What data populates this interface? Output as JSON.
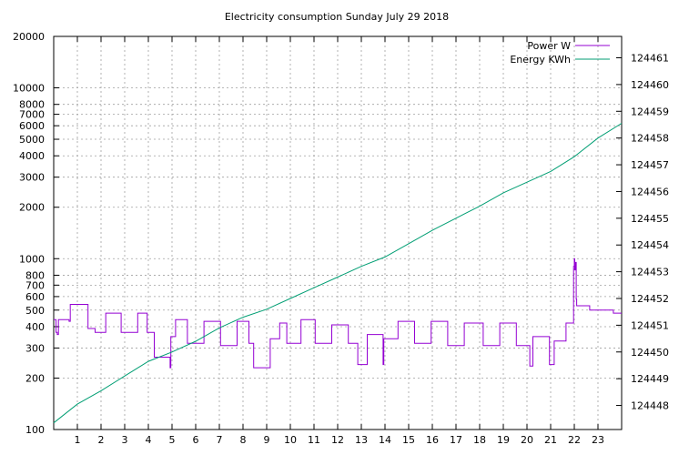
{
  "chart_data": {
    "type": "line",
    "title": "Electricity consumption Sunday July 29 2018",
    "xlim": [
      0,
      24
    ],
    "x_ticks": [
      "1",
      "2",
      "3",
      "4",
      "5",
      "6",
      "7",
      "8",
      "9",
      "10",
      "11",
      "12",
      "13",
      "14",
      "15",
      "16",
      "17",
      "18",
      "19",
      "20",
      "21",
      "22",
      "23"
    ],
    "y_left": {
      "scale": "log",
      "ylim": [
        100,
        20000
      ],
      "ticks": [
        "100",
        "200",
        "300",
        "400",
        "500",
        "600",
        "700",
        "800",
        "1000",
        "2000",
        "3000",
        "4000",
        "5000",
        "6000",
        "7000",
        "8000",
        "10000",
        "20000"
      ]
    },
    "y_right": {
      "scale": "linear",
      "ylim": [
        124447.1,
        124461.8
      ],
      "ticks": [
        "124448",
        "124449",
        "124450",
        "124451",
        "124452",
        "124453",
        "124454",
        "124455",
        "124456",
        "124457",
        "124458",
        "124459",
        "124460",
        "124461"
      ]
    },
    "legend_position": "top-right",
    "grid": true,
    "series": [
      {
        "name": "Power W",
        "axis": "left",
        "color": "#9400d3",
        "step": true,
        "points": [
          [
            0.0,
            440
          ],
          [
            0.1,
            370
          ],
          [
            0.15,
            360
          ],
          [
            0.2,
            440
          ],
          [
            0.6,
            440
          ],
          [
            0.65,
            430
          ],
          [
            0.7,
            540
          ],
          [
            1.4,
            540
          ],
          [
            1.45,
            390
          ],
          [
            1.7,
            390
          ],
          [
            1.75,
            370
          ],
          [
            2.15,
            370
          ],
          [
            2.2,
            480
          ],
          [
            2.8,
            480
          ],
          [
            2.85,
            370
          ],
          [
            3.5,
            370
          ],
          [
            3.55,
            480
          ],
          [
            3.9,
            480
          ],
          [
            3.95,
            370
          ],
          [
            4.2,
            370
          ],
          [
            4.25,
            265
          ],
          [
            4.9,
            265
          ],
          [
            4.92,
            230
          ],
          [
            4.95,
            350
          ],
          [
            5.1,
            350
          ],
          [
            5.15,
            440
          ],
          [
            5.6,
            440
          ],
          [
            5.65,
            320
          ],
          [
            6.3,
            320
          ],
          [
            6.35,
            430
          ],
          [
            7.0,
            430
          ],
          [
            7.05,
            310
          ],
          [
            7.7,
            310
          ],
          [
            7.75,
            430
          ],
          [
            8.2,
            430
          ],
          [
            8.25,
            320
          ],
          [
            8.4,
            320
          ],
          [
            8.45,
            230
          ],
          [
            9.1,
            230
          ],
          [
            9.15,
            340
          ],
          [
            9.5,
            340
          ],
          [
            9.55,
            420
          ],
          [
            9.8,
            420
          ],
          [
            9.85,
            320
          ],
          [
            10.4,
            320
          ],
          [
            10.45,
            440
          ],
          [
            11.0,
            440
          ],
          [
            11.05,
            320
          ],
          [
            11.7,
            320
          ],
          [
            11.75,
            410
          ],
          [
            12.4,
            410
          ],
          [
            12.45,
            320
          ],
          [
            12.8,
            320
          ],
          [
            12.85,
            240
          ],
          [
            13.2,
            240
          ],
          [
            13.25,
            360
          ],
          [
            13.9,
            360
          ],
          [
            13.92,
            240
          ],
          [
            13.95,
            340
          ],
          [
            14.5,
            340
          ],
          [
            14.55,
            430
          ],
          [
            15.2,
            430
          ],
          [
            15.25,
            320
          ],
          [
            15.9,
            320
          ],
          [
            15.95,
            430
          ],
          [
            16.6,
            430
          ],
          [
            16.65,
            310
          ],
          [
            17.3,
            310
          ],
          [
            17.35,
            420
          ],
          [
            18.1,
            420
          ],
          [
            18.15,
            310
          ],
          [
            18.8,
            310
          ],
          [
            18.85,
            420
          ],
          [
            19.5,
            420
          ],
          [
            19.55,
            310
          ],
          [
            20.1,
            310
          ],
          [
            20.12,
            235
          ],
          [
            20.2,
            235
          ],
          [
            20.25,
            350
          ],
          [
            20.9,
            350
          ],
          [
            20.95,
            240
          ],
          [
            21.1,
            240
          ],
          [
            21.15,
            330
          ],
          [
            21.6,
            330
          ],
          [
            21.65,
            420
          ],
          [
            21.95,
            420
          ],
          [
            21.97,
            900
          ],
          [
            22.0,
            1000
          ],
          [
            22.02,
            860
          ],
          [
            22.05,
            950
          ],
          [
            22.08,
            580
          ],
          [
            22.1,
            530
          ],
          [
            22.6,
            530
          ],
          [
            22.65,
            500
          ],
          [
            23.6,
            500
          ],
          [
            23.65,
            480
          ],
          [
            24.0,
            480
          ]
        ]
      },
      {
        "name": "Energy KWh",
        "axis": "right",
        "color": "#009e73",
        "step": false,
        "points": [
          [
            0,
            124447.35
          ],
          [
            1,
            124448.05
          ],
          [
            2,
            124448.55
          ],
          [
            3,
            124449.1
          ],
          [
            4,
            124449.65
          ],
          [
            5,
            124450.0
          ],
          [
            6,
            124450.4
          ],
          [
            7,
            124450.9
          ],
          [
            8,
            124451.3
          ],
          [
            9,
            124451.6
          ],
          [
            10,
            124452.0
          ],
          [
            11,
            124452.4
          ],
          [
            12,
            124452.8
          ],
          [
            13,
            124453.2
          ],
          [
            14,
            124453.55
          ],
          [
            15,
            124454.05
          ],
          [
            16,
            124454.55
          ],
          [
            17,
            124455.0
          ],
          [
            18,
            124455.45
          ],
          [
            19,
            124455.95
          ],
          [
            20,
            124456.35
          ],
          [
            21,
            124456.75
          ],
          [
            22,
            124457.3
          ],
          [
            23,
            124458.0
          ],
          [
            24,
            124458.55
          ]
        ]
      }
    ]
  }
}
